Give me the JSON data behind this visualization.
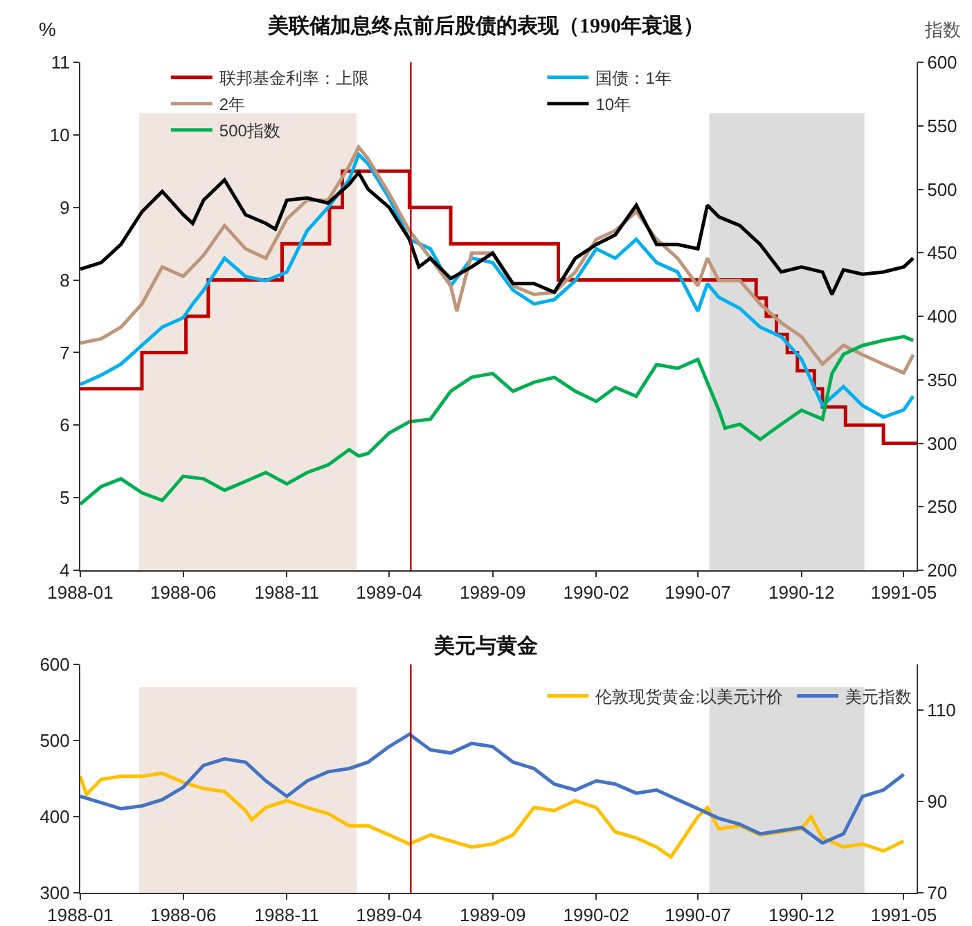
{
  "chart_data": [
    {
      "type": "line",
      "title": "美联储加息终点前后股债的表现（1990年衰退）",
      "ylabel": "%",
      "y2label": "指数",
      "legend": "top",
      "xlim": [
        "1988-01",
        "1991-05-20"
      ],
      "xticks": [
        {
          "value": "1988-01",
          "label": "1988-01"
        },
        {
          "value": "1988-06",
          "label": "1988-06"
        },
        {
          "value": "1988-11",
          "label": "1988-11"
        },
        {
          "value": "1989-04",
          "label": "1989-04"
        },
        {
          "value": "1989-09",
          "label": "1989-09"
        },
        {
          "value": "1990-02",
          "label": "1990-02"
        },
        {
          "value": "1990-07",
          "label": "1990-07"
        },
        {
          "value": "1990-12",
          "label": "1990-12"
        },
        {
          "value": "1991-05",
          "label": "1991-05"
        }
      ],
      "ylim": [
        4,
        11
      ],
      "yticks": [
        4,
        5,
        6,
        7,
        8,
        9,
        10,
        11
      ],
      "y2lim": [
        200,
        600
      ],
      "y2ticks": [
        200,
        250,
        300,
        350,
        400,
        450,
        500,
        550,
        600
      ],
      "bands": [
        {
          "axis": "x",
          "from": "1988-03-28",
          "to": "1989-02-12",
          "color": "#f0e6df"
        },
        {
          "axis": "x",
          "from": "1990-07-18",
          "to": "1991-03-04",
          "color": "#dcdcdc"
        }
      ],
      "ref_lines": [
        {
          "axis": "x",
          "value": "1989-05-03",
          "color": "#c00000"
        }
      ],
      "series": [
        {
          "name": "联邦基金利率：上限",
          "type": "step",
          "color": "#c00000",
          "x": [
            "1988-01",
            "1988-04",
            "1988-06-05",
            "1988-07-08",
            "1988-10-25",
            "1989-01-03",
            "1989-01-22",
            "1989-05-01",
            "1989-07-01",
            "1989-12-07",
            "1990-09-25",
            "1990-10-10",
            "1990-10-25",
            "1990-11-10",
            "1990-11-25",
            "1990-12-20",
            "1991-01-01",
            "1991-02-04",
            "1991-04-01",
            "1991-05-20"
          ],
          "values": [
            6.5,
            7.0,
            7.5,
            8.0,
            8.5,
            9.0,
            9.5,
            9.0,
            8.5,
            8.0,
            7.75,
            7.5,
            7.25,
            7.0,
            6.75,
            6.5,
            6.25,
            6.0,
            5.75,
            5.75
          ]
        },
        {
          "name": "国债：1年",
          "color": "#00b0f0",
          "x": [
            "1988-01",
            "1988-02",
            "1988-03",
            "1988-04",
            "1988-05",
            "1988-06",
            "1988-06-15",
            "1988-07",
            "1988-08",
            "1988-09",
            "1988-10",
            "1988-11",
            "1988-12",
            "1989-01",
            "1989-02",
            "1989-02-15",
            "1989-03",
            "1989-04",
            "1989-05",
            "1989-06",
            "1989-07",
            "1989-08",
            "1989-09",
            "1989-10",
            "1989-11",
            "1989-12",
            "1990-01",
            "1990-02",
            "1990-03",
            "1990-04",
            "1990-05",
            "1990-06",
            "1990-07",
            "1990-07-15",
            "1990-08",
            "1990-09",
            "1990-10",
            "1990-11",
            "1990-12",
            "1991-01",
            "1991-02",
            "1991-03",
            "1991-04",
            "1991-05",
            "1991-05-15"
          ],
          "values": [
            6.56,
            6.69,
            6.84,
            7.1,
            7.35,
            7.48,
            7.67,
            7.86,
            8.3,
            8.05,
            7.99,
            8.11,
            8.68,
            9.0,
            9.38,
            9.73,
            9.6,
            9.13,
            8.56,
            8.43,
            7.92,
            8.3,
            8.24,
            7.86,
            7.67,
            7.73,
            7.99,
            8.43,
            8.3,
            8.56,
            8.24,
            8.11,
            7.57,
            7.95,
            7.76,
            7.61,
            7.35,
            7.22,
            6.91,
            6.27,
            6.53,
            6.27,
            6.11,
            6.21,
            6.4
          ]
        },
        {
          "name": "2年",
          "color": "#c0967a",
          "x": [
            "1988-01",
            "1988-02",
            "1988-03",
            "1988-04",
            "1988-05",
            "1988-06",
            "1988-07",
            "1988-08",
            "1988-09",
            "1988-10",
            "1988-11",
            "1988-12",
            "1989-01",
            "1989-02",
            "1989-02-15",
            "1989-03",
            "1989-04",
            "1989-05",
            "1989-06",
            "1989-07",
            "1989-07-10",
            "1989-08",
            "1989-09",
            "1989-10",
            "1989-11",
            "1989-12",
            "1990-01",
            "1990-02",
            "1990-03",
            "1990-04",
            "1990-05",
            "1990-06",
            "1990-07",
            "1990-07-15",
            "1990-08",
            "1990-09",
            "1990-10",
            "1990-11",
            "1990-12",
            "1991-01",
            "1991-02",
            "1991-03",
            "1991-04",
            "1991-05",
            "1991-05-15"
          ],
          "values": [
            7.13,
            7.19,
            7.35,
            7.67,
            8.18,
            8.05,
            8.34,
            8.75,
            8.43,
            8.3,
            8.84,
            9.1,
            9.1,
            9.57,
            9.83,
            9.67,
            9.19,
            8.68,
            8.3,
            7.92,
            7.57,
            8.37,
            8.37,
            7.92,
            7.8,
            7.83,
            8.11,
            8.56,
            8.68,
            8.94,
            8.56,
            8.3,
            7.92,
            8.3,
            7.99,
            7.99,
            7.67,
            7.41,
            7.22,
            6.84,
            7.1,
            6.97,
            6.84,
            6.72,
            6.97
          ]
        },
        {
          "name": "10年",
          "color": "#000000",
          "x": [
            "1988-01",
            "1988-02",
            "1988-03",
            "1988-04",
            "1988-05",
            "1988-06",
            "1988-06-15",
            "1988-07",
            "1988-08",
            "1988-09",
            "1988-10",
            "1988-10-15",
            "1988-11",
            "1988-12",
            "1989-01",
            "1989-02",
            "1989-02-15",
            "1989-03",
            "1989-04",
            "1989-05",
            "1989-05-15",
            "1989-06",
            "1989-07",
            "1989-08",
            "1989-09",
            "1989-10",
            "1989-11",
            "1989-12",
            "1990-01",
            "1990-02",
            "1990-03",
            "1990-04",
            "1990-05",
            "1990-06",
            "1990-07",
            "1990-07-15",
            "1990-08",
            "1990-09",
            "1990-10",
            "1990-11",
            "1990-12",
            "1991-01",
            "1991-01-15",
            "1991-02",
            "1991-03",
            "1991-04",
            "1991-05",
            "1991-05-15"
          ],
          "values": [
            8.15,
            8.24,
            8.49,
            8.94,
            9.22,
            8.9,
            8.78,
            9.1,
            9.38,
            8.9,
            8.78,
            8.7,
            9.1,
            9.13,
            9.06,
            9.32,
            9.48,
            9.25,
            9.0,
            8.56,
            8.18,
            8.3,
            8.02,
            8.18,
            8.37,
            7.95,
            7.95,
            7.83,
            8.3,
            8.49,
            8.62,
            9.03,
            8.49,
            8.49,
            8.43,
            9.03,
            8.87,
            8.75,
            8.49,
            8.11,
            8.18,
            8.11,
            7.8,
            8.14,
            8.08,
            8.11,
            8.18,
            8.3
          ]
        },
        {
          "name": "500指数",
          "color": "#00b050",
          "axis": "y2",
          "x": [
            "1988-01",
            "1988-02",
            "1988-03",
            "1988-04",
            "1988-05",
            "1988-06",
            "1988-07",
            "1988-08",
            "1988-09",
            "1988-10",
            "1988-11",
            "1988-12",
            "1989-01",
            "1989-02",
            "1989-02-15",
            "1989-03",
            "1989-04",
            "1989-05",
            "1989-06",
            "1989-07",
            "1989-08",
            "1989-09",
            "1989-10",
            "1989-11",
            "1989-12",
            "1990-01",
            "1990-02",
            "1990-03",
            "1990-04",
            "1990-05",
            "1990-06",
            "1990-07",
            "1990-08",
            "1990-08-10",
            "1990-09",
            "1990-10",
            "1990-11",
            "1990-12",
            "1991-01",
            "1991-01-15",
            "1991-02",
            "1991-03",
            "1991-04",
            "1991-05",
            "1991-05-15"
          ],
          "values": [
            252,
            266,
            272,
            261,
            255,
            274,
            272,
            263,
            270,
            277,
            268,
            277,
            283,
            295,
            290,
            292,
            308,
            317,
            319,
            341,
            352,
            355,
            341,
            348,
            352,
            341,
            333,
            344,
            337,
            362,
            359,
            366,
            326,
            312,
            315,
            303,
            315,
            326,
            319,
            355,
            370,
            377,
            381,
            384,
            381
          ]
        }
      ]
    },
    {
      "type": "line",
      "title": "美元与黄金",
      "legend": "top right",
      "xlim": [
        "1988-01",
        "1991-05-20"
      ],
      "xticks": [
        {
          "value": "1988-01",
          "label": "1988-01"
        },
        {
          "value": "1988-06",
          "label": "1988-06"
        },
        {
          "value": "1988-11",
          "label": "1988-11"
        },
        {
          "value": "1989-04",
          "label": "1989-04"
        },
        {
          "value": "1989-09",
          "label": "1989-09"
        },
        {
          "value": "1990-02",
          "label": "1990-02"
        },
        {
          "value": "1990-07",
          "label": "1990-07"
        },
        {
          "value": "1990-12",
          "label": "1990-12"
        },
        {
          "value": "1991-05",
          "label": "1991-05"
        }
      ],
      "ylim": [
        300,
        600
      ],
      "yticks": [
        300,
        400,
        500,
        600
      ],
      "y2lim": [
        70,
        120
      ],
      "y2ticks": [
        70,
        90,
        110
      ],
      "bands": [
        {
          "axis": "x",
          "from": "1988-03-28",
          "to": "1989-02-12",
          "color": "#f0e6df"
        },
        {
          "axis": "x",
          "from": "1990-07-18",
          "to": "1991-03-04",
          "color": "#dcdcdc"
        }
      ],
      "ref_lines": [
        {
          "axis": "x",
          "value": "1989-05-03",
          "color": "#c00000"
        }
      ],
      "series": [
        {
          "name": "伦敦现货黄金:以美元计价",
          "color": "#ffc000",
          "x": [
            "1988-01",
            "1988-01-10",
            "1988-02",
            "1988-03",
            "1988-04",
            "1988-05",
            "1988-06",
            "1988-07",
            "1988-08",
            "1988-09",
            "1988-09-10",
            "1988-10",
            "1988-11",
            "1988-12",
            "1989-01",
            "1989-02",
            "1989-03",
            "1989-04",
            "1989-05",
            "1989-06",
            "1989-07",
            "1989-08",
            "1989-09",
            "1989-10",
            "1989-11",
            "1989-12",
            "1990-01",
            "1990-02",
            "1990-03",
            "1990-04",
            "1990-05",
            "1990-05-22",
            "1990-06",
            "1990-07",
            "1990-07-15",
            "1990-08",
            "1990-09",
            "1990-10",
            "1990-11",
            "1990-12",
            "1990-12-15",
            "1991-01",
            "1991-02",
            "1991-03",
            "1991-04",
            "1991-05"
          ],
          "values": [
            453,
            429,
            449,
            453,
            453,
            457,
            445,
            437,
            433,
            408,
            396,
            412,
            421,
            412,
            404,
            388,
            388,
            376,
            364,
            376,
            368,
            360,
            364,
            376,
            412,
            408,
            421,
            412,
            380,
            372,
            360,
            347,
            360,
            400,
            412,
            384,
            388,
            376,
            380,
            384,
            400,
            372,
            360,
            364,
            355,
            368
          ]
        },
        {
          "name": "美元指数",
          "color": "#4472c4",
          "axis": "y2",
          "x": [
            "1988-01",
            "1988-02",
            "1988-03",
            "1988-04",
            "1988-05",
            "1988-06",
            "1988-07",
            "1988-08",
            "1988-09",
            "1988-10",
            "1988-11",
            "1988-12",
            "1989-01",
            "1989-02",
            "1989-03",
            "1989-04",
            "1989-05",
            "1989-06",
            "1989-07",
            "1989-08",
            "1989-09",
            "1989-10",
            "1989-11",
            "1989-12",
            "1990-01",
            "1990-02",
            "1990-03",
            "1990-04",
            "1990-05",
            "1990-06",
            "1990-07",
            "1990-08",
            "1990-09",
            "1990-10",
            "1990-11",
            "1990-12",
            "1991-01",
            "1991-02",
            "1991-03",
            "1991-04",
            "1991-05"
          ],
          "values": [
            91.1,
            89.7,
            88.4,
            89,
            90.4,
            93.1,
            97.9,
            99.3,
            98.6,
            94.5,
            91.1,
            94.5,
            96.5,
            97.2,
            98.6,
            102,
            104.7,
            101.3,
            100.6,
            102.7,
            102,
            98.6,
            97.2,
            93.8,
            92.5,
            94.5,
            93.8,
            91.8,
            92.5,
            90.4,
            88.4,
            86.3,
            85,
            82.9,
            83.6,
            84.3,
            80.9,
            82.9,
            91.1,
            92.5,
            95.9
          ]
        }
      ]
    }
  ]
}
